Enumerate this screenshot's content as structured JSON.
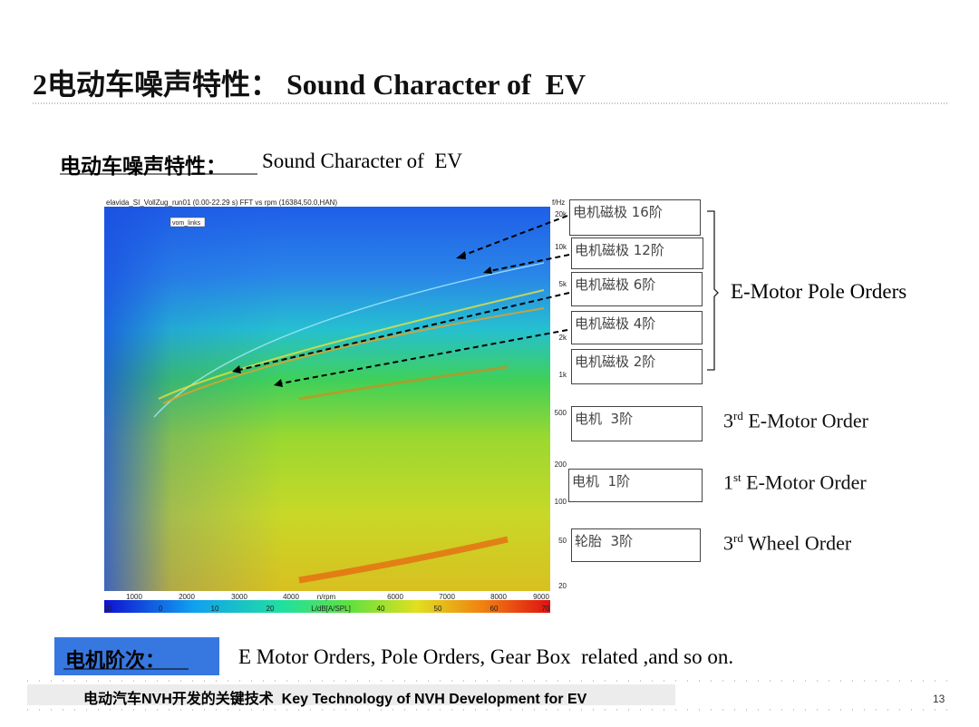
{
  "title": "2电动车噪声特性： Sound Character of  EV",
  "subtitle": {
    "zh": "电动车噪声特性：",
    "en": "Sound Character of  EV"
  },
  "spectrogram": {
    "header": "elavida_SI_VollZug_run01 (0.00-22.29 s) FFT vs rpm (16384,50.0,HAN)",
    "tag": "vom_links",
    "y_unit": "f/Hz",
    "y_labels": [
      "20k",
      "10k",
      "5k",
      "2k",
      "1k",
      "500",
      "200",
      "100",
      "50",
      "20"
    ],
    "x_labels": [
      "1000",
      "2000",
      "3000",
      "4000",
      "n/rpm",
      "6000",
      "7000",
      "8000",
      "9000"
    ],
    "colorbar_labels": [
      "10",
      "0",
      "10",
      "20",
      "L/dB[A/SPL]",
      "40",
      "50",
      "60",
      "70"
    ]
  },
  "order_boxes": [
    "电机磁极 16阶",
    "电机磁极 12阶",
    "电机磁极 6阶",
    "电机磁极 4阶",
    "电机磁极 2阶",
    "电机  3阶",
    "电机  1阶",
    "轮胎  3阶"
  ],
  "pole_orders_label": "E-Motor Pole Orders",
  "order_labels": [
    {
      "num": "3",
      "sup": "rd",
      "text": " E-Motor Order"
    },
    {
      "num": "1",
      "sup": "st",
      "text": " E-Motor Order"
    },
    {
      "num": "3",
      "sup": "rd",
      "text": " Wheel Order"
    }
  ],
  "summary": {
    "label": "电机阶次：",
    "text": "E Motor Orders, Pole Orders, Gear Box  related ,and so on."
  },
  "footer": {
    "text": "电动汽车NVH开发的关键技术  Key Technology of NVH Development for EV",
    "page": "13"
  }
}
